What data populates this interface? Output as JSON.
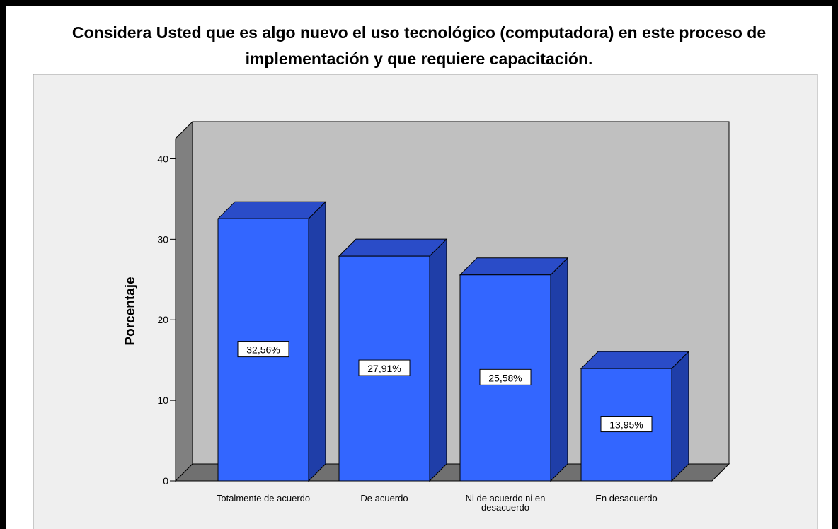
{
  "chart_data": {
    "type": "bar3d",
    "title": "Considera Usted que es algo nuevo el uso tecnológico (computadora) en este proceso de implementación y que requiere capacitación.",
    "y_label": "Porcentaje",
    "categories": [
      "Totalmente de acuerdo",
      "De acuerdo",
      "Ni de acuerdo ni en desacuerdo",
      "En desacuerdo"
    ],
    "values": [
      32.56,
      27.91,
      25.58,
      13.95
    ],
    "value_labels": [
      "32,56%",
      "27,91%",
      "25,58%",
      "13,95%"
    ],
    "color": "#3366ff",
    "ylim": [
      0,
      42.5
    ],
    "yticks": [
      0,
      10,
      20,
      30,
      40
    ]
  }
}
